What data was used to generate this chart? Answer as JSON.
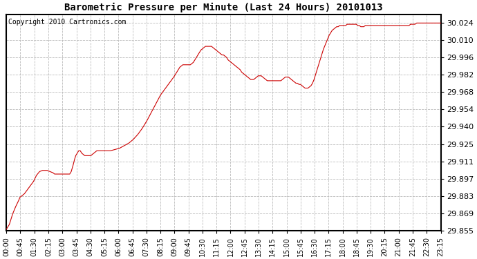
{
  "title": "Barometric Pressure per Minute (Last 24 Hours) 20101013",
  "copyright": "Copyright 2010 Cartronics.com",
  "line_color": "#cc0000",
  "background_color": "#ffffff",
  "plot_bg_color": "#ffffff",
  "grid_color": "#bbbbbb",
  "ylim": [
    29.855,
    30.031
  ],
  "yticks": [
    29.855,
    29.869,
    29.883,
    29.897,
    29.911,
    29.925,
    29.94,
    29.954,
    29.968,
    29.982,
    29.996,
    30.01,
    30.024
  ],
  "xtick_labels": [
    "00:00",
    "00:45",
    "01:30",
    "02:15",
    "03:00",
    "03:45",
    "04:30",
    "05:15",
    "06:00",
    "06:45",
    "07:30",
    "08:15",
    "09:00",
    "09:45",
    "10:30",
    "11:15",
    "12:00",
    "12:45",
    "13:30",
    "14:15",
    "15:00",
    "15:45",
    "16:30",
    "17:15",
    "18:00",
    "18:45",
    "19:30",
    "20:15",
    "21:00",
    "21:45",
    "22:30",
    "23:15"
  ],
  "keypoints": [
    [
      0,
      29.856
    ],
    [
      10,
      29.86
    ],
    [
      20,
      29.868
    ],
    [
      30,
      29.874
    ],
    [
      40,
      29.879
    ],
    [
      45,
      29.882
    ],
    [
      60,
      29.885
    ],
    [
      75,
      29.89
    ],
    [
      90,
      29.895
    ],
    [
      100,
      29.9
    ],
    [
      110,
      29.903
    ],
    [
      120,
      29.904
    ],
    [
      130,
      29.904
    ],
    [
      135,
      29.904
    ],
    [
      145,
      29.903
    ],
    [
      155,
      29.902
    ],
    [
      160,
      29.901
    ],
    [
      165,
      29.901
    ],
    [
      175,
      29.901
    ],
    [
      180,
      29.901
    ],
    [
      190,
      29.901
    ],
    [
      200,
      29.901
    ],
    [
      210,
      29.901
    ],
    [
      215,
      29.903
    ],
    [
      220,
      29.907
    ],
    [
      225,
      29.912
    ],
    [
      230,
      29.916
    ],
    [
      235,
      29.918
    ],
    [
      240,
      29.92
    ],
    [
      245,
      29.92
    ],
    [
      250,
      29.918
    ],
    [
      255,
      29.917
    ],
    [
      260,
      29.916
    ],
    [
      265,
      29.916
    ],
    [
      270,
      29.916
    ],
    [
      275,
      29.916
    ],
    [
      280,
      29.916
    ],
    [
      285,
      29.917
    ],
    [
      290,
      29.918
    ],
    [
      295,
      29.919
    ],
    [
      300,
      29.92
    ],
    [
      315,
      29.92
    ],
    [
      330,
      29.92
    ],
    [
      345,
      29.92
    ],
    [
      360,
      29.921
    ],
    [
      375,
      29.922
    ],
    [
      390,
      29.924
    ],
    [
      405,
      29.926
    ],
    [
      420,
      29.929
    ],
    [
      435,
      29.933
    ],
    [
      450,
      29.938
    ],
    [
      465,
      29.944
    ],
    [
      480,
      29.951
    ],
    [
      495,
      29.958
    ],
    [
      510,
      29.965
    ],
    [
      525,
      29.97
    ],
    [
      540,
      29.975
    ],
    [
      555,
      29.98
    ],
    [
      560,
      29.982
    ],
    [
      565,
      29.984
    ],
    [
      570,
      29.986
    ],
    [
      575,
      29.988
    ],
    [
      580,
      29.989
    ],
    [
      585,
      29.99
    ],
    [
      590,
      29.99
    ],
    [
      595,
      29.99
    ],
    [
      600,
      29.99
    ],
    [
      610,
      29.99
    ],
    [
      615,
      29.991
    ],
    [
      620,
      29.992
    ],
    [
      625,
      29.994
    ],
    [
      630,
      29.996
    ],
    [
      635,
      29.998
    ],
    [
      640,
      30.0
    ],
    [
      645,
      30.002
    ],
    [
      650,
      30.003
    ],
    [
      655,
      30.004
    ],
    [
      660,
      30.005
    ],
    [
      665,
      30.005
    ],
    [
      670,
      30.005
    ],
    [
      675,
      30.005
    ],
    [
      680,
      30.005
    ],
    [
      685,
      30.004
    ],
    [
      690,
      30.003
    ],
    [
      695,
      30.002
    ],
    [
      700,
      30.001
    ],
    [
      705,
      30.0
    ],
    [
      710,
      29.999
    ],
    [
      715,
      29.998
    ],
    [
      720,
      29.998
    ],
    [
      725,
      29.997
    ],
    [
      730,
      29.996
    ],
    [
      735,
      29.994
    ],
    [
      740,
      29.993
    ],
    [
      745,
      29.992
    ],
    [
      750,
      29.991
    ],
    [
      755,
      29.99
    ],
    [
      760,
      29.989
    ],
    [
      765,
      29.988
    ],
    [
      770,
      29.987
    ],
    [
      775,
      29.986
    ],
    [
      780,
      29.984
    ],
    [
      785,
      29.983
    ],
    [
      790,
      29.982
    ],
    [
      795,
      29.981
    ],
    [
      800,
      29.98
    ],
    [
      805,
      29.979
    ],
    [
      810,
      29.978
    ],
    [
      815,
      29.978
    ],
    [
      820,
      29.978
    ],
    [
      825,
      29.979
    ],
    [
      830,
      29.98
    ],
    [
      835,
      29.981
    ],
    [
      840,
      29.981
    ],
    [
      845,
      29.981
    ],
    [
      850,
      29.98
    ],
    [
      855,
      29.979
    ],
    [
      860,
      29.978
    ],
    [
      865,
      29.977
    ],
    [
      870,
      29.977
    ],
    [
      875,
      29.977
    ],
    [
      880,
      29.977
    ],
    [
      885,
      29.977
    ],
    [
      890,
      29.977
    ],
    [
      895,
      29.977
    ],
    [
      900,
      29.977
    ],
    [
      905,
      29.977
    ],
    [
      910,
      29.977
    ],
    [
      915,
      29.978
    ],
    [
      920,
      29.979
    ],
    [
      925,
      29.98
    ],
    [
      930,
      29.98
    ],
    [
      935,
      29.98
    ],
    [
      940,
      29.979
    ],
    [
      945,
      29.978
    ],
    [
      950,
      29.977
    ],
    [
      955,
      29.976
    ],
    [
      960,
      29.975
    ],
    [
      965,
      29.975
    ],
    [
      970,
      29.974
    ],
    [
      975,
      29.974
    ],
    [
      980,
      29.973
    ],
    [
      985,
      29.972
    ],
    [
      990,
      29.971
    ],
    [
      995,
      29.971
    ],
    [
      1000,
      29.971
    ],
    [
      1005,
      29.972
    ],
    [
      1010,
      29.973
    ],
    [
      1015,
      29.975
    ],
    [
      1020,
      29.978
    ],
    [
      1025,
      29.982
    ],
    [
      1030,
      29.986
    ],
    [
      1035,
      29.99
    ],
    [
      1040,
      29.994
    ],
    [
      1045,
      29.998
    ],
    [
      1050,
      30.002
    ],
    [
      1055,
      30.005
    ],
    [
      1060,
      30.008
    ],
    [
      1065,
      30.011
    ],
    [
      1070,
      30.014
    ],
    [
      1075,
      30.016
    ],
    [
      1080,
      30.018
    ],
    [
      1085,
      30.019
    ],
    [
      1090,
      30.02
    ],
    [
      1095,
      30.021
    ],
    [
      1100,
      30.021
    ],
    [
      1105,
      30.022
    ],
    [
      1110,
      30.022
    ],
    [
      1115,
      30.022
    ],
    [
      1120,
      30.022
    ],
    [
      1125,
      30.022
    ],
    [
      1130,
      30.023
    ],
    [
      1135,
      30.023
    ],
    [
      1140,
      30.023
    ],
    [
      1145,
      30.023
    ],
    [
      1150,
      30.023
    ],
    [
      1155,
      30.023
    ],
    [
      1160,
      30.023
    ],
    [
      1165,
      30.022
    ],
    [
      1170,
      30.022
    ],
    [
      1175,
      30.021
    ],
    [
      1180,
      30.021
    ],
    [
      1185,
      30.021
    ],
    [
      1190,
      30.022
    ],
    [
      1195,
      30.022
    ],
    [
      1200,
      30.022
    ],
    [
      1205,
      30.022
    ],
    [
      1210,
      30.022
    ],
    [
      1215,
      30.022
    ],
    [
      1220,
      30.022
    ],
    [
      1225,
      30.022
    ],
    [
      1230,
      30.022
    ],
    [
      1235,
      30.022
    ],
    [
      1240,
      30.022
    ],
    [
      1245,
      30.022
    ],
    [
      1250,
      30.022
    ],
    [
      1255,
      30.022
    ],
    [
      1260,
      30.022
    ],
    [
      1265,
      30.022
    ],
    [
      1270,
      30.022
    ],
    [
      1275,
      30.022
    ],
    [
      1280,
      30.022
    ],
    [
      1285,
      30.022
    ],
    [
      1290,
      30.022
    ],
    [
      1295,
      30.022
    ],
    [
      1300,
      30.022
    ],
    [
      1305,
      30.022
    ],
    [
      1310,
      30.022
    ],
    [
      1315,
      30.022
    ],
    [
      1320,
      30.022
    ],
    [
      1325,
      30.022
    ],
    [
      1330,
      30.022
    ],
    [
      1335,
      30.022
    ],
    [
      1340,
      30.023
    ],
    [
      1345,
      30.023
    ],
    [
      1350,
      30.023
    ],
    [
      1355,
      30.023
    ],
    [
      1360,
      30.024
    ],
    [
      1365,
      30.024
    ],
    [
      1380,
      30.024
    ],
    [
      1395,
      30.024
    ],
    [
      1410,
      30.024
    ],
    [
      1425,
      30.024
    ],
    [
      1440,
      30.024
    ]
  ]
}
